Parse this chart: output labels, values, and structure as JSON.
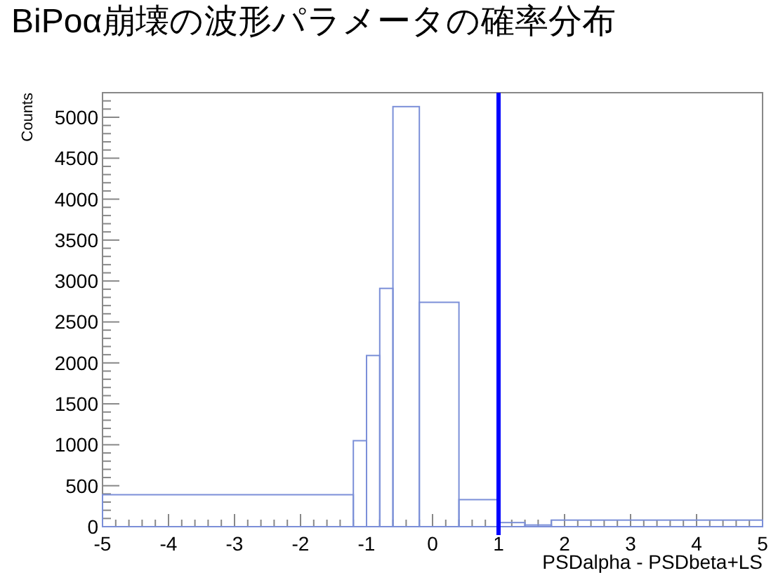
{
  "chart_data": {
    "type": "histogram",
    "title": "BiPoα崩壊の波形パラメータの確率分布",
    "xlabel": "PSDalpha - PSDbeta+LS",
    "ylabel": "Counts",
    "bins": [
      -5,
      -1.2,
      -1,
      -0.8,
      -0.6,
      -0.2,
      0.4,
      1,
      1.4,
      1.8,
      5
    ],
    "values": [
      390,
      1050,
      2090,
      2910,
      5130,
      2740,
      330,
      50,
      20,
      80
    ],
    "color": "#7b8fd8",
    "xlim": [
      -5,
      5
    ],
    "ylim": [
      0,
      5300
    ],
    "xticks": [
      -5,
      -4,
      -3,
      -2,
      -1,
      0,
      1,
      2,
      3,
      4,
      5
    ],
    "yticks": [
      0,
      500,
      1000,
      1500,
      2000,
      2500,
      3000,
      3500,
      4000,
      4500,
      5000
    ],
    "ref_lines": [
      {
        "axis": "x",
        "value": 1,
        "color": "#0000ff"
      }
    ]
  }
}
